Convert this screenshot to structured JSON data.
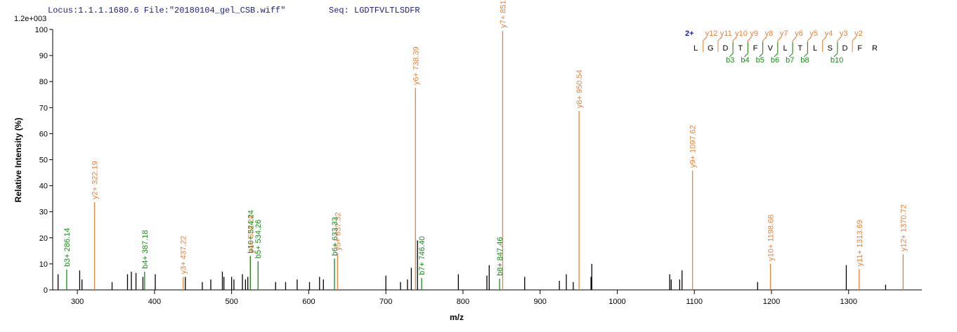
{
  "chart_data": {
    "type": "stem",
    "header": "Locus:1.1.1.1680.6 File:\"20180104_gel_CSB.wiff\"",
    "sequence_label": "Seq: LGDTFVLTLSDFR",
    "scale_label": "1.2e+003",
    "xlabel": "m/z",
    "ylabel": "Relative   Intensity (%)",
    "xlim": [
      268,
      1395
    ],
    "xticks": [
      300,
      400,
      500,
      600,
      700,
      800,
      900,
      1000,
      1100,
      1200,
      1300
    ],
    "ylim": [
      0,
      100
    ],
    "yticks": [
      0,
      10,
      20,
      30,
      40,
      50,
      60,
      70,
      80,
      90,
      100
    ],
    "series": [
      {
        "color": "#000000",
        "x": [
          275,
          303,
          306,
          345,
          365,
          370,
          376,
          385,
          401,
          440,
          462,
          473,
          488,
          490,
          500,
          503,
          514,
          518,
          521,
          557,
          570,
          585,
          601,
          614,
          619,
          700,
          719,
          728,
          733,
          741,
          794,
          831,
          834,
          880,
          925,
          934,
          943,
          966,
          967,
          1068,
          1070,
          1081,
          1084,
          1182,
          1297,
          1348
        ],
        "values": [
          6,
          7.5,
          4,
          3,
          6,
          7,
          6.5,
          5,
          6,
          5,
          3,
          4,
          7,
          5,
          5,
          4,
          6,
          4,
          5,
          3,
          3,
          4,
          3,
          5,
          4,
          5.5,
          3,
          4,
          8.5,
          19,
          6,
          5.5,
          9.5,
          5,
          3.5,
          6,
          3,
          5,
          10,
          6,
          4,
          4,
          7.5,
          3,
          9.5,
          2
        ]
      },
      {
        "color": "#e8823c",
        "x": [
          322.19,
          437.22,
          524.24,
          637.32,
          738.39,
          851.47,
          950.54,
          1097.62,
          1198.68,
          1313.69,
          1370.72
        ],
        "values": [
          33.7,
          5,
          13,
          14,
          77.6,
          99.5,
          68.7,
          45.8,
          10,
          8,
          13.7
        ],
        "labels": [
          "y2+ 322.19",
          "y3+ 437.22",
          "y4+ 524.24",
          "y5+ 637.32",
          "y6+ 738.39",
          "y7+ 851.47",
          "y8+ 950.54",
          "y9+ 1097.62",
          "y10+ 1198.68",
          "y11+ 1313.69",
          "y12+ 1370.72"
        ]
      },
      {
        "color": "#1a8a1a",
        "x": [
          286.14,
          387.18,
          524.24,
          534.26,
          633.33,
          746.4,
          847.46
        ],
        "values": [
          7.8,
          7,
          13,
          11,
          12,
          4.6,
          4.3
        ],
        "labels": [
          "b3+ 286.14",
          "b4+ 387.18",
          "b10+ 524.24",
          "b5+ 534.26",
          "b6+ 633.33",
          "b7+ 746.40",
          "b8+ 847.46"
        ]
      }
    ],
    "fragment_map": {
      "charge": "2+",
      "residues": [
        "L",
        "G",
        "D",
        "T",
        "F",
        "V",
        "L",
        "T",
        "L",
        "S",
        "D",
        "F",
        "R"
      ],
      "y_ions": [
        "y12",
        "y11",
        "y10",
        "y9",
        "y8",
        "y7",
        "y6",
        "y5",
        "y4",
        "y3",
        "y2",
        null
      ],
      "b_ions": [
        null,
        null,
        "b3",
        "b4",
        "b5",
        "b6",
        "b7",
        "b8",
        null,
        "b10",
        null,
        null
      ]
    }
  }
}
